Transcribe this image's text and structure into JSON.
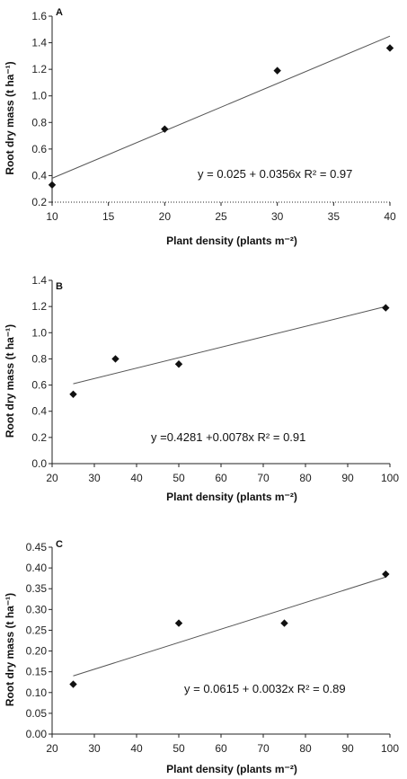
{
  "chart_data": [
    {
      "type": "scatter",
      "panel": "A",
      "xlabel": "Plant density (plants m⁻²)",
      "ylabel": "Root dry mass (t ha⁻¹)",
      "xlim": [
        10,
        40
      ],
      "ylim": [
        0.2,
        1.6
      ],
      "xticks": [
        10,
        15,
        20,
        25,
        30,
        35,
        40
      ],
      "yticks": [
        "0.2",
        "0.4",
        "0.6",
        "0.8",
        "1.0",
        "1.2",
        "1.4",
        "1.6"
      ],
      "points": [
        {
          "x": 10,
          "y": 0.33
        },
        {
          "x": 20,
          "y": 0.75
        },
        {
          "x": 30,
          "y": 1.19
        },
        {
          "x": 40,
          "y": 1.36
        }
      ],
      "trendline": {
        "x0": 10,
        "y0": 0.38,
        "x1": 40,
        "y1": 1.45
      },
      "equation": "y = 0.025 + 0.0356x  R² = 0.97",
      "grid": false
    },
    {
      "type": "scatter",
      "panel": "B",
      "xlabel": "Plant density (plants m⁻²)",
      "ylabel": "Root dry mass (t ha⁻¹)",
      "xlim": [
        20,
        100
      ],
      "ylim": [
        0.0,
        1.4
      ],
      "xticks": [
        20,
        30,
        40,
        50,
        60,
        70,
        80,
        90,
        100
      ],
      "yticks": [
        "0.0",
        "0.2",
        "0.4",
        "0.6",
        "0.8",
        "1.0",
        "1.2",
        "1.4"
      ],
      "points": [
        {
          "x": 25,
          "y": 0.53
        },
        {
          "x": 35,
          "y": 0.8
        },
        {
          "x": 50,
          "y": 0.76
        },
        {
          "x": 99,
          "y": 1.19
        }
      ],
      "trendline": {
        "x0": 25,
        "y0": 0.61,
        "x1": 99,
        "y1": 1.2
      },
      "equation": "y =0.4281 +0.0078x R² = 0.91",
      "grid": false
    },
    {
      "type": "scatter",
      "panel": "C",
      "xlabel": "Plant density (plants m⁻²)",
      "ylabel": "Root dry mass (t ha⁻¹)",
      "xlim": [
        20,
        100
      ],
      "ylim": [
        0.0,
        0.45
      ],
      "xticks": [
        20,
        30,
        40,
        50,
        60,
        70,
        80,
        90,
        100
      ],
      "yticks": [
        "0.00",
        "0.05",
        "0.10",
        "0.15",
        "0.20",
        "0.25",
        "0.30",
        "0.35",
        "0.40",
        "0.45"
      ],
      "points": [
        {
          "x": 25,
          "y": 0.12
        },
        {
          "x": 50,
          "y": 0.267
        },
        {
          "x": 75,
          "y": 0.267
        },
        {
          "x": 99,
          "y": 0.385
        }
      ],
      "trendline": {
        "x0": 25,
        "y0": 0.14,
        "x1": 99,
        "y1": 0.378
      },
      "equation": "y = 0.0615 + 0.0032x  R² = 0.89",
      "grid": false
    }
  ]
}
